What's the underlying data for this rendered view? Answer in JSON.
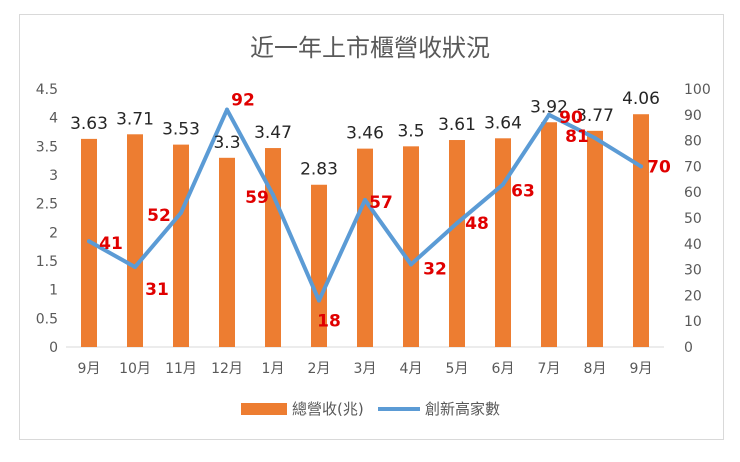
{
  "chart_data": {
    "type": "bar+line",
    "title": "近一年上市櫃營收狀況",
    "categories": [
      "9月",
      "10月",
      "11月",
      "12月",
      "1月",
      "2月",
      "3月",
      "4月",
      "5月",
      "6月",
      "7月",
      "8月",
      "9月"
    ],
    "series": [
      {
        "name": "總營收(兆)",
        "type": "bar",
        "axis": "left",
        "color": "#ed7d31",
        "values": [
          3.63,
          3.71,
          3.53,
          3.3,
          3.47,
          2.83,
          3.46,
          3.5,
          3.61,
          3.64,
          3.92,
          3.77,
          4.06
        ]
      },
      {
        "name": "創新高家數",
        "type": "line",
        "axis": "right",
        "color": "#5b9bd5",
        "label_color": "#e00000",
        "values": [
          41,
          31,
          52,
          92,
          59,
          18,
          57,
          32,
          48,
          63,
          90,
          81,
          70
        ]
      }
    ],
    "y_left": {
      "min": 0,
      "max": 4.5,
      "ticks": [
        "0",
        "0.5",
        "1",
        "1.5",
        "2",
        "2.5",
        "3",
        "3.5",
        "4",
        "4.5"
      ]
    },
    "y_right": {
      "min": 0,
      "max": 100,
      "ticks": [
        "0",
        "10",
        "20",
        "30",
        "40",
        "50",
        "60",
        "70",
        "80",
        "90",
        "100"
      ]
    },
    "grid": false,
    "legend": "bottom"
  }
}
